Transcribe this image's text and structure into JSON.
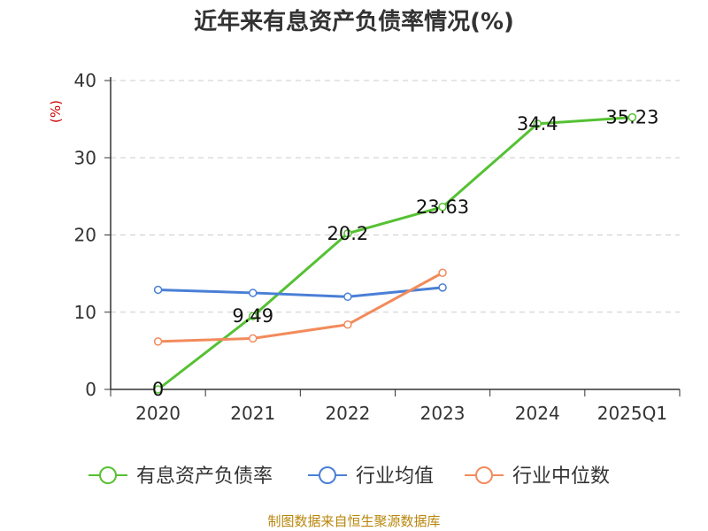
{
  "title": "近年来有息资产负债率情况(%)",
  "source": "制图数据来自恒生聚源数据库",
  "colors": {
    "axis": "#333333",
    "grid": "#cccccc",
    "unit": "#cc0000"
  },
  "chart_data": {
    "type": "line",
    "title": "近年来有息资产负债率情况(%)",
    "ylabel": "(%)",
    "categories": [
      "2020",
      "2021",
      "2022",
      "2023",
      "2024",
      "2025Q1"
    ],
    "y_ticks": [
      0,
      10,
      20,
      30,
      40
    ],
    "ylim": [
      0,
      40
    ],
    "grid": true,
    "legend_position": "bottom",
    "series": [
      {
        "name": "有息资产负债率",
        "color": "#55c133",
        "values": [
          0,
          9.49,
          20.2,
          23.63,
          34.4,
          35.23
        ],
        "labels": [
          "0",
          "9.49",
          "20.2",
          "23.63",
          "34.4",
          "35.23"
        ]
      },
      {
        "name": "行业均值",
        "color": "#4a7fd6",
        "values": [
          12.9,
          12.5,
          12.0,
          13.2,
          null,
          null
        ]
      },
      {
        "name": "行业中位数",
        "color": "#f28b5c",
        "values": [
          6.2,
          6.6,
          8.4,
          15.1,
          null,
          null
        ]
      }
    ]
  }
}
